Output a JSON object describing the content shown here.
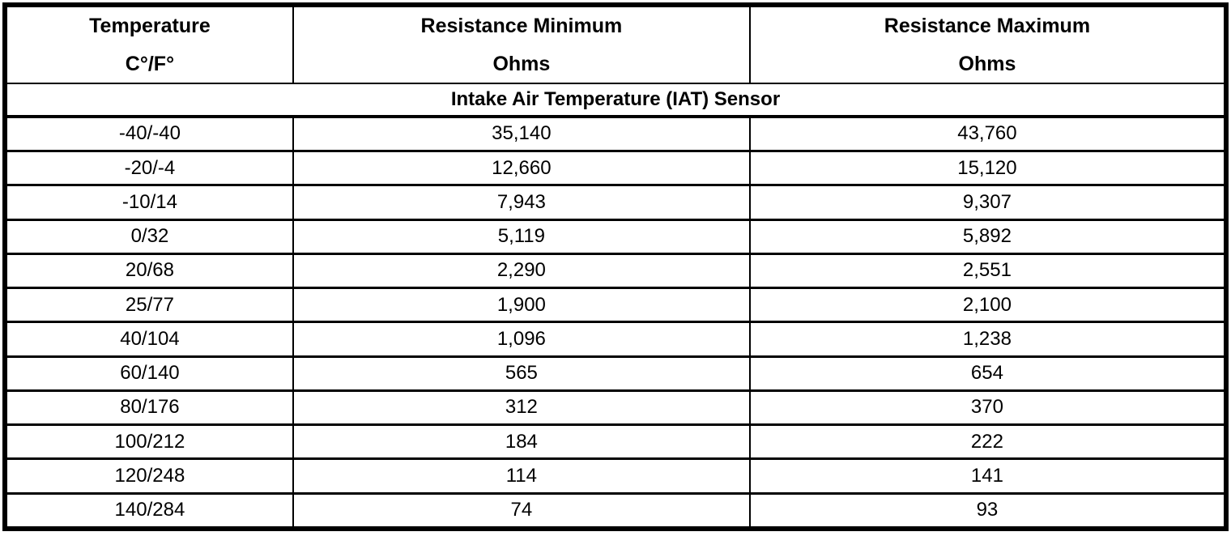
{
  "table": {
    "columns": [
      {
        "title": "Temperature",
        "unit": "C°/F°"
      },
      {
        "title": "Resistance Minimum",
        "unit": "Ohms"
      },
      {
        "title": "Resistance Maximum",
        "unit": "Ohms"
      }
    ],
    "section_title": "Intake Air Temperature (IAT) Sensor",
    "rows": [
      {
        "temp": "-40/-40",
        "min": "35,140",
        "max": "43,760"
      },
      {
        "temp": "-20/-4",
        "min": "12,660",
        "max": "15,120"
      },
      {
        "temp": "-10/14",
        "min": "7,943",
        "max": "9,307"
      },
      {
        "temp": "0/32",
        "min": "5,119",
        "max": "5,892"
      },
      {
        "temp": "20/68",
        "min": "2,290",
        "max": "2,551"
      },
      {
        "temp": "25/77",
        "min": "1,900",
        "max": "2,100"
      },
      {
        "temp": "40/104",
        "min": "1,096",
        "max": "1,238"
      },
      {
        "temp": "60/140",
        "min": "565",
        "max": "654"
      },
      {
        "temp": "80/176",
        "min": "312",
        "max": "370"
      },
      {
        "temp": "100/212",
        "min": "184",
        "max": "222"
      },
      {
        "temp": "120/248",
        "min": "114",
        "max": "141"
      },
      {
        "temp": "140/284",
        "min": "74",
        "max": "93"
      }
    ],
    "colors": {
      "border": "#000000",
      "background": "#ffffff",
      "text": "#000000"
    }
  },
  "chart_data": {
    "type": "table",
    "title": "Intake Air Temperature (IAT) Sensor",
    "columns": [
      "Temperature C°/F°",
      "Resistance Minimum Ohms",
      "Resistance Maximum Ohms"
    ],
    "temperature_c": [
      -40,
      -20,
      -10,
      0,
      20,
      25,
      40,
      60,
      80,
      100,
      120,
      140
    ],
    "temperature_f": [
      -40,
      -4,
      14,
      32,
      68,
      77,
      104,
      140,
      176,
      212,
      248,
      284
    ],
    "resistance_min_ohms": [
      35140,
      12660,
      7943,
      5119,
      2290,
      1900,
      1096,
      565,
      312,
      184,
      114,
      74
    ],
    "resistance_max_ohms": [
      43760,
      15120,
      9307,
      5892,
      2551,
      2100,
      1238,
      654,
      370,
      222,
      141,
      93
    ]
  }
}
